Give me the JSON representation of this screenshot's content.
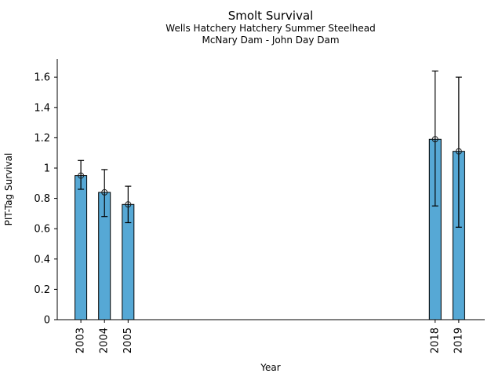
{
  "chart_data": {
    "type": "bar",
    "title": "Smolt Survival",
    "subtitle1": "Wells Hatchery Hatchery Summer Steelhead",
    "subtitle2": "McNary Dam - John Day Dam",
    "xlabel": "Year",
    "ylabel": "PIT-Tag Survival",
    "categories": [
      "2003",
      "2004",
      "2005",
      "2018",
      "2019"
    ],
    "series": [
      {
        "name": "PIT-Tag Survival",
        "values": [
          0.95,
          0.84,
          0.76,
          1.19,
          1.11
        ],
        "error_low": [
          0.86,
          0.68,
          0.64,
          0.75,
          0.61
        ],
        "error_high": [
          1.05,
          0.99,
          0.88,
          1.64,
          1.6
        ]
      }
    ],
    "x_numeric": [
      2003,
      2004,
      2005,
      2018,
      2019
    ],
    "xlim": [
      2002,
      2020.1
    ],
    "ylim": [
      0,
      1.72
    ],
    "yticks": [
      0,
      0.2,
      0.4,
      0.6,
      0.8,
      1,
      1.2,
      1.4,
      1.6
    ],
    "ytick_labels": [
      "0",
      "0.2",
      "0.4",
      "0.6",
      "0.8",
      "1",
      "1.2",
      "1.4",
      "1.6"
    ],
    "grid": false,
    "legend": null,
    "marker": "open-circle",
    "bar_color": "#56A8D5",
    "bar_edge_color": "#000000",
    "error_color": "#000000",
    "axis_color": "#000000"
  }
}
